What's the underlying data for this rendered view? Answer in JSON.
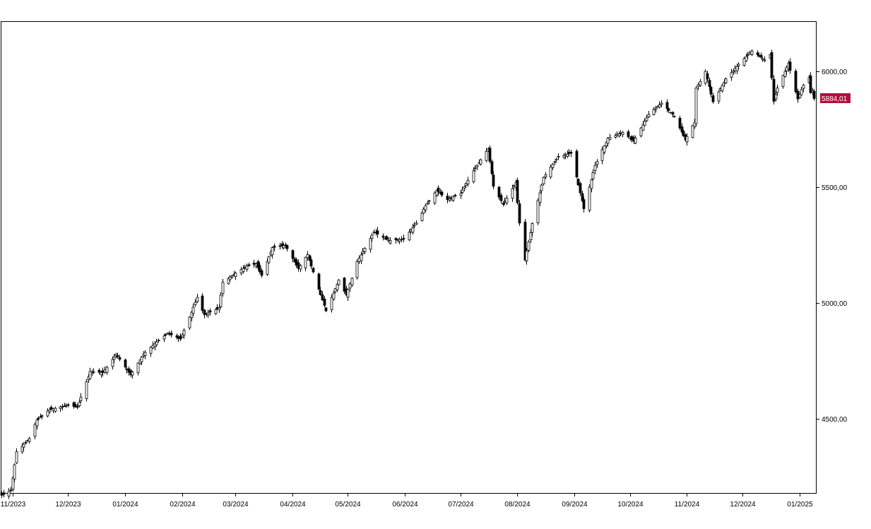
{
  "chart_data": {
    "type": "candlestick",
    "title": "",
    "xlabel": "",
    "ylabel": "",
    "ylim": [
      4180,
      6215
    ],
    "y_ticks": [
      {
        "value": 4500,
        "label": "4500,00"
      },
      {
        "value": 5000,
        "label": "5000,00"
      },
      {
        "value": 5500,
        "label": "5500,00"
      },
      {
        "value": 6000,
        "label": "6000,00"
      }
    ],
    "x_range": [
      "2023-10-26",
      "2025-01-10"
    ],
    "x_ticks": [
      {
        "date": "2023-11-01",
        "label": "11/2023"
      },
      {
        "date": "2023-12-01",
        "label": "12/2023"
      },
      {
        "date": "2024-01-01",
        "label": "01/2024"
      },
      {
        "date": "2024-02-01",
        "label": "02/2024"
      },
      {
        "date": "2024-03-01",
        "label": "03/2024"
      },
      {
        "date": "2024-04-01",
        "label": "04/2024"
      },
      {
        "date": "2024-05-01",
        "label": "05/2024"
      },
      {
        "date": "2024-06-01",
        "label": "06/2024"
      },
      {
        "date": "2024-07-01",
        "label": "07/2024"
      },
      {
        "date": "2024-08-01",
        "label": "08/2024"
      },
      {
        "date": "2024-09-01",
        "label": "09/2024"
      },
      {
        "date": "2024-10-01",
        "label": "10/2024"
      },
      {
        "date": "2024-11-01",
        "label": "11/2024"
      },
      {
        "date": "2024-12-01",
        "label": "12/2024"
      },
      {
        "date": "2025-01-01",
        "label": "01/2025"
      }
    ],
    "last_value": {
      "value": 5884.01,
      "label": "5884,01"
    },
    "grid": false,
    "legend": "none",
    "anchors": [
      [
        "2023-10-26",
        4170
      ],
      [
        "2023-10-31",
        4190
      ],
      [
        "2023-11-03",
        4358
      ],
      [
        "2023-11-10",
        4415
      ],
      [
        "2023-11-14",
        4496
      ],
      [
        "2023-11-21",
        4540
      ],
      [
        "2023-12-01",
        4560
      ],
      [
        "2023-12-06",
        4550
      ],
      [
        "2023-12-13",
        4705
      ],
      [
        "2023-12-20",
        4700
      ],
      [
        "2023-12-27",
        4780
      ],
      [
        "2024-01-04",
        4690
      ],
      [
        "2024-01-11",
        4780
      ],
      [
        "2024-01-19",
        4840
      ],
      [
        "2024-01-24",
        4870
      ],
      [
        "2024-01-31",
        4845
      ],
      [
        "2024-02-05",
        4940
      ],
      [
        "2024-02-09",
        5025
      ],
      [
        "2024-02-13",
        4950
      ],
      [
        "2024-02-21",
        4980
      ],
      [
        "2024-02-23",
        5090
      ],
      [
        "2024-03-01",
        5130
      ],
      [
        "2024-03-07",
        5160
      ],
      [
        "2024-03-12",
        5170
      ],
      [
        "2024-03-15",
        5120
      ],
      [
        "2024-03-21",
        5240
      ],
      [
        "2024-03-28",
        5250
      ],
      [
        "2024-04-04",
        5150
      ],
      [
        "2024-04-09",
        5210
      ],
      [
        "2024-04-15",
        5060
      ],
      [
        "2024-04-19",
        4967
      ],
      [
        "2024-04-26",
        5100
      ],
      [
        "2024-04-30",
        5035
      ],
      [
        "2024-05-06",
        5180
      ],
      [
        "2024-05-15",
        5308
      ],
      [
        "2024-05-23",
        5270
      ],
      [
        "2024-05-31",
        5277
      ],
      [
        "2024-06-07",
        5346
      ],
      [
        "2024-06-12",
        5421
      ],
      [
        "2024-06-18",
        5487
      ],
      [
        "2024-06-24",
        5447
      ],
      [
        "2024-07-01",
        5475
      ],
      [
        "2024-07-08",
        5572
      ],
      [
        "2024-07-16",
        5667
      ],
      [
        "2024-07-19",
        5505
      ],
      [
        "2024-07-24",
        5427
      ],
      [
        "2024-07-31",
        5522
      ],
      [
        "2024-08-02",
        5346
      ],
      [
        "2024-08-05",
        5186
      ],
      [
        "2024-08-09",
        5344
      ],
      [
        "2024-08-15",
        5543
      ],
      [
        "2024-08-23",
        5634
      ],
      [
        "2024-08-30",
        5648
      ],
      [
        "2024-09-06",
        5408
      ],
      [
        "2024-09-12",
        5595
      ],
      [
        "2024-09-19",
        5713
      ],
      [
        "2024-09-27",
        5738
      ],
      [
        "2024-10-03",
        5699
      ],
      [
        "2024-10-11",
        5815
      ],
      [
        "2024-10-18",
        5864
      ],
      [
        "2024-10-25",
        5808
      ],
      [
        "2024-10-31",
        5705
      ],
      [
        "2024-11-05",
        5782
      ],
      [
        "2024-11-06",
        5929
      ],
      [
        "2024-11-11",
        6001
      ],
      [
        "2024-11-15",
        5870
      ],
      [
        "2024-11-22",
        5969
      ],
      [
        "2024-11-29",
        6032
      ],
      [
        "2024-12-06",
        6090
      ],
      [
        "2024-12-13",
        6051
      ],
      [
        "2024-12-16",
        6074
      ],
      [
        "2024-12-18",
        5872
      ],
      [
        "2024-12-20",
        5930
      ],
      [
        "2024-12-26",
        6037
      ],
      [
        "2024-12-31",
        5882
      ],
      [
        "2025-01-03",
        5942
      ],
      [
        "2025-01-06",
        5975
      ],
      [
        "2025-01-07",
        5909
      ],
      [
        "2025-01-08",
        5918
      ],
      [
        "2025-01-09",
        5884.01
      ]
    ]
  },
  "colors": {
    "background": "#ffffff",
    "frame": "#000000",
    "candle_up": "#ffffff",
    "candle_down": "#000000",
    "last_value_bg": "#b0103a",
    "last_value_text": "#ffffff"
  }
}
